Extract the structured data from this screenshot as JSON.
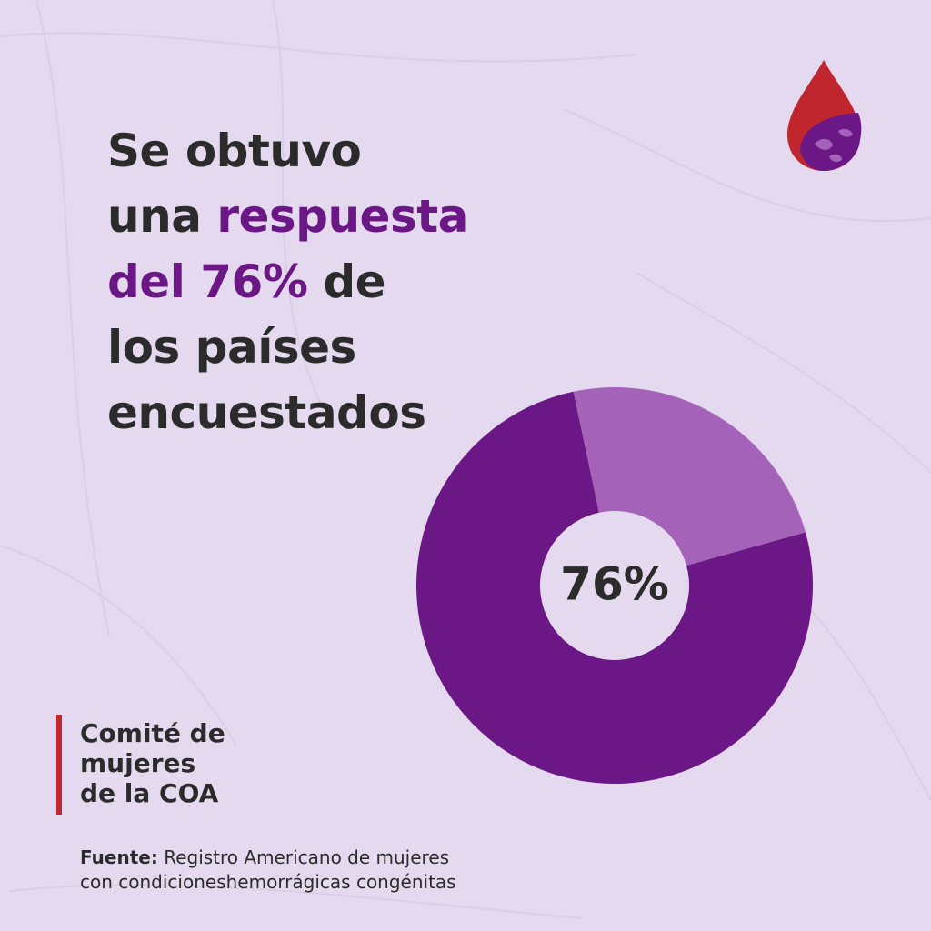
{
  "headline": {
    "line1": "Se obtuvo",
    "line2_a": "una ",
    "line2_b": "respuesta",
    "line3_a": "del 76%",
    "line3_b": " de",
    "line4": "los países",
    "line5": "encuestados"
  },
  "chart_data": {
    "type": "pie",
    "categories": [
      "",
      ""
    ],
    "values": [
      76,
      24
    ],
    "colors": [
      "#6b1786",
      "#a462b8"
    ],
    "center_label": "76%",
    "title": ""
  },
  "committee": {
    "line1": "Comité de",
    "line2": "mujeres",
    "line3": "de la COA"
  },
  "source": {
    "label": "Fuente:",
    "line1": " Registro Americano de mujeres",
    "line2": "con condicioneshemorrágicas congénitas"
  },
  "colors": {
    "background": "#e4d9ee",
    "accent_purple": "#6b1786",
    "accent_light_purple": "#a462b8",
    "accent_red": "#c0262d",
    "text": "#2b2b2b"
  },
  "icons": {
    "logo": "blood-drop-globe-icon"
  }
}
